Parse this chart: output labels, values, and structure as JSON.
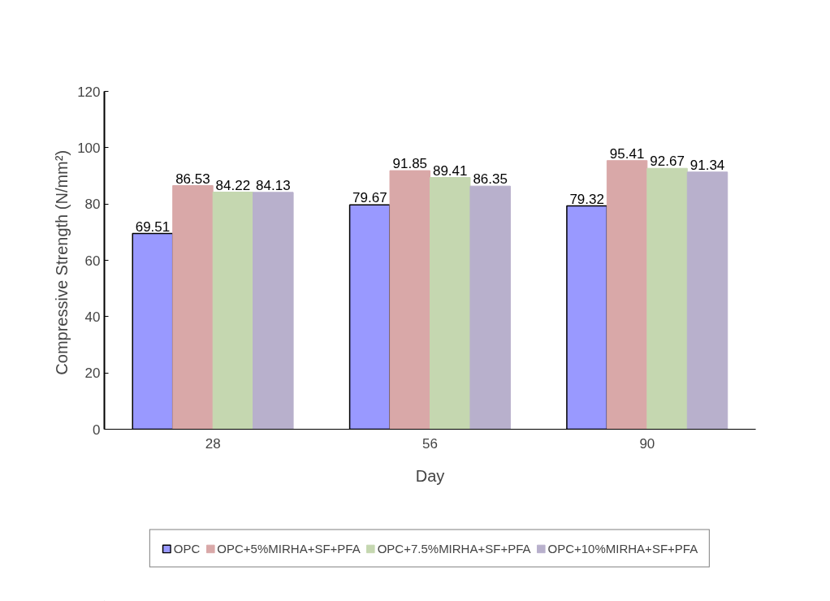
{
  "chart_data": {
    "type": "bar",
    "xlabel": "Day",
    "ylabel": "Compressive  Strength (N/mm²)",
    "categories": [
      "28",
      "56",
      "90"
    ],
    "series": [
      {
        "name": "OPC",
        "color": "#9999ff",
        "values": [
          69.51,
          79.67,
          79.32
        ]
      },
      {
        "name": "OPC+5%MIRHA+SF+PFA",
        "color": "#d9a8a8",
        "values": [
          86.53,
          91.85,
          95.41
        ]
      },
      {
        "name": "OPC+7.5%MIRHA+SF+PFA",
        "color": "#c5d7b0",
        "values": [
          84.22,
          89.41,
          92.67
        ]
      },
      {
        "name": "OPC+10%MIRHA+SF+PFA",
        "color": "#b8b0cc",
        "values": [
          84.13,
          86.35,
          91.34
        ]
      }
    ],
    "ylim": [
      0,
      120
    ],
    "yticks": [
      0,
      20,
      40,
      60,
      80,
      100,
      120
    ],
    "data_labels": true,
    "grid": false,
    "legend": "bottom"
  }
}
